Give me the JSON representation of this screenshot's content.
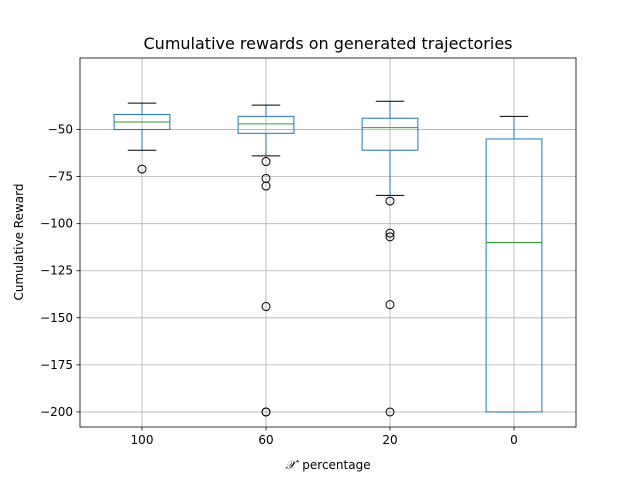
{
  "chart_data": {
    "type": "box",
    "title": "Cumulative rewards on generated trajectories",
    "xlabel_prefix": "𝒳′",
    "xlabel_suffix": " percentage",
    "ylabel": "Cumulative Reward",
    "categories": [
      "100",
      "60",
      "20",
      "0"
    ],
    "ylim": [
      -208,
      -12
    ],
    "yticks": [
      -50,
      -75,
      -100,
      -125,
      -150,
      -175,
      -200
    ],
    "grid": true,
    "colors": {
      "box": "#1f77b4",
      "median": "#2ca02c",
      "whisker": "#000000",
      "flier": "#000000"
    },
    "boxes": [
      {
        "category": "100",
        "whisker_low": -61,
        "q1": -50,
        "median": -46,
        "q3": -42,
        "whisker_high": -36,
        "fliers": [
          -71
        ]
      },
      {
        "category": "60",
        "whisker_low": -64,
        "q1": -52,
        "median": -47,
        "q3": -43,
        "whisker_high": -37,
        "fliers": [
          -67,
          -76,
          -80,
          -144,
          -200,
          -200
        ]
      },
      {
        "category": "20",
        "whisker_low": -85,
        "q1": -61,
        "median": -49,
        "q3": -44,
        "whisker_high": -35,
        "fliers": [
          -88,
          -105,
          -107,
          -143,
          -200
        ]
      },
      {
        "category": "0",
        "whisker_low": -200,
        "q1": -200,
        "median": -110,
        "q3": -55,
        "whisker_high": -43,
        "fliers": []
      }
    ]
  }
}
